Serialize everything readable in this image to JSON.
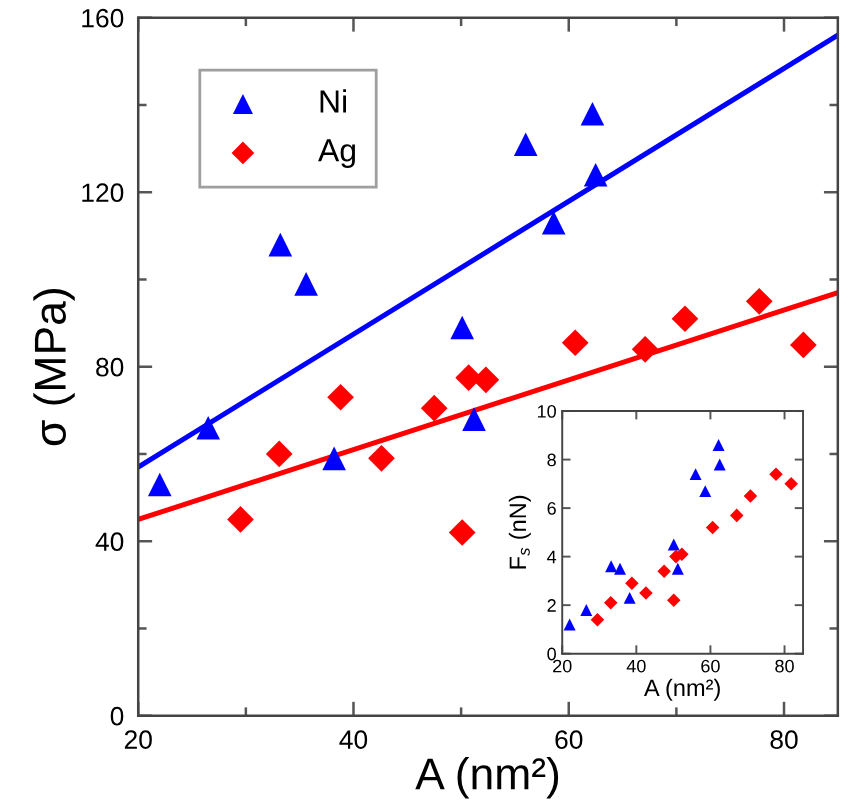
{
  "chart_data": [
    {
      "type": "scatter",
      "xlabel": "A (nm²)",
      "ylabel": "σ (MPa)",
      "xlim": [
        20,
        85
      ],
      "ylim": [
        0,
        160
      ],
      "xticks": [
        20,
        {
          "value": 30,
          "label": null
        },
        40,
        {
          "value": 50,
          "label": null
        },
        60,
        {
          "value": 70,
          "label": null
        },
        80
      ],
      "yticks": [
        0,
        {
          "value": 20,
          "label": null
        },
        40,
        {
          "value": 60,
          "label": null
        },
        80,
        {
          "value": 100,
          "label": null
        },
        120,
        {
          "value": 140,
          "label": null
        },
        160
      ],
      "legend": "top left",
      "series": [
        {
          "name": "Ni",
          "color": "#0000ff",
          "marker": "triangle",
          "x": [
            22,
            26.5,
            33.2,
            35.6,
            38.2,
            50.1,
            51.2,
            56,
            58.6,
            62.2,
            62.5
          ],
          "values": [
            53,
            66,
            108,
            99,
            59,
            89,
            68,
            131,
            113,
            138,
            124
          ]
        },
        {
          "name": "Ag",
          "color": "#ff0000",
          "marker": "diamond",
          "x": [
            29.5,
            33.1,
            38.8,
            42.6,
            47.5,
            50.1,
            50.7,
            52.3,
            60.6,
            67.1,
            70.8,
            77.7,
            81.8
          ],
          "values": [
            45,
            60,
            73,
            59,
            70.5,
            42,
            77.5,
            77,
            85.5,
            84,
            91,
            95,
            85
          ]
        },
        {
          "type": "line",
          "color": "#0000ff",
          "x": [
            20,
            85
          ],
          "values": [
            57,
            156
          ]
        },
        {
          "type": "line",
          "color": "#ff0000",
          "x": [
            20,
            85
          ],
          "values": [
            45,
            97
          ]
        }
      ]
    },
    {
      "type": "scatter",
      "xlabel": "A (nm²)",
      "ylabel": "F$_{s}$ (nN)",
      "xlim": [
        20,
        85
      ],
      "ylim": [
        0,
        10
      ],
      "xticks": [
        20,
        40,
        60,
        80
      ],
      "yticks": [
        0,
        2,
        4,
        6,
        8,
        10
      ],
      "series": [
        {
          "color": "#0000ff",
          "marker": "triangle",
          "x": [
            22,
            26.5,
            33.2,
            35.6,
            38.2,
            50.1,
            51.2,
            56,
            58.6,
            62.2,
            62.5
          ],
          "values": [
            1.2,
            1.8,
            3.6,
            3.5,
            2.3,
            4.5,
            3.5,
            7.4,
            6.7,
            8.6,
            7.8
          ]
        },
        {
          "color": "#ff0000",
          "marker": "diamond",
          "x": [
            29.5,
            33.1,
            38.8,
            42.6,
            47.5,
            50.1,
            50.7,
            52.3,
            60.6,
            67.1,
            70.8,
            77.7,
            81.8
          ],
          "values": [
            1.4,
            2.1,
            2.9,
            2.5,
            3.4,
            2.2,
            4.0,
            4.1,
            5.2,
            5.7,
            6.5,
            7.4,
            7.0
          ]
        }
      ]
    }
  ]
}
